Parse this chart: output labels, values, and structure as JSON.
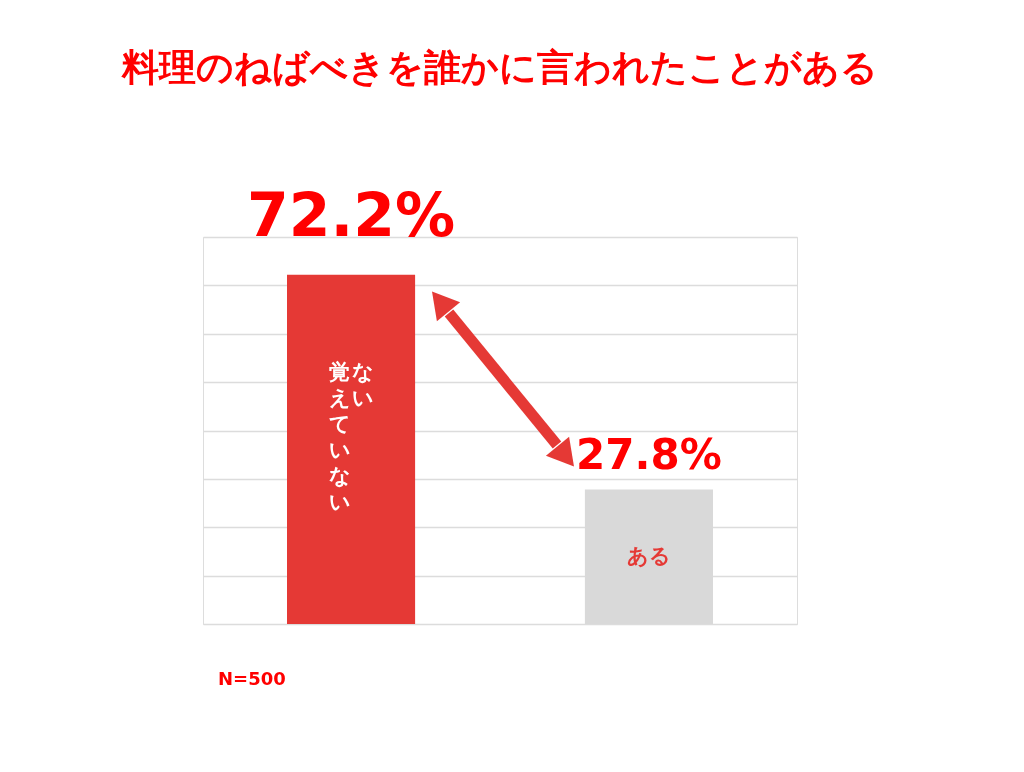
{
  "chart_data": {
    "type": "bar",
    "title": "料理のねばべきを誰かに言われたことがある",
    "categories": [
      "ない覚えていない",
      "ある"
    ],
    "values": [
      72.2,
      27.8
    ],
    "colors": [
      "#e53935",
      "#d9d9d9"
    ],
    "value_labels": [
      "72.2%",
      "27.8%"
    ],
    "ylim": [
      0,
      80
    ],
    "yticks": [
      {
        "value": 0,
        "label": null
      },
      {
        "value": 10,
        "label": null
      },
      {
        "value": 20,
        "label": null
      },
      {
        "value": 30,
        "label": null
      },
      {
        "value": 40,
        "label": null
      },
      {
        "value": 50,
        "label": null
      },
      {
        "value": 60,
        "label": null
      },
      {
        "value": 70,
        "label": null
      },
      {
        "value": 80,
        "label": null
      }
    ],
    "grid": "y",
    "tick_labels": false,
    "annotations": [
      "N=500"
    ]
  }
}
